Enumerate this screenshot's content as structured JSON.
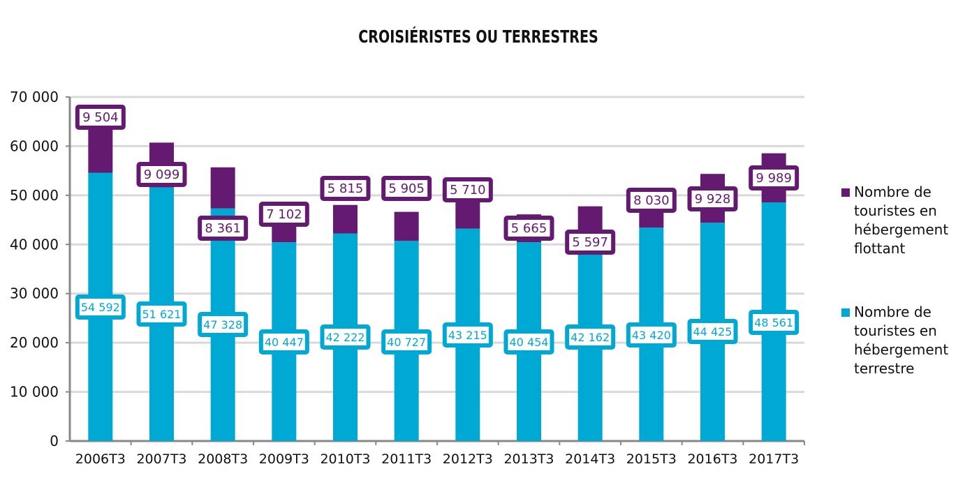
{
  "chart_data": {
    "type": "bar",
    "stacked": true,
    "title": "CROISIÉRISTES OU TERRESTRES",
    "categories": [
      "2006T3",
      "2007T3",
      "2008T3",
      "2009T3",
      "2010T3",
      "2011T3",
      "2012T3",
      "2013T3",
      "2014T3",
      "2015T3",
      "2016T3",
      "2017T3"
    ],
    "ylim": [
      0,
      70000
    ],
    "yticks": [
      0,
      10000,
      20000,
      30000,
      40000,
      50000,
      60000,
      70000
    ],
    "ytick_labels": [
      "0",
      "10 000",
      "20 000",
      "30 000",
      "40 000",
      "50 000",
      "60 000",
      "70 000"
    ],
    "grid": true,
    "legend_position": "right",
    "series": [
      {
        "name": "Nombre de touristes en hébergement terrestre",
        "color": "#00A8D4",
        "values": [
          54592,
          51621,
          47328,
          40447,
          42222,
          40727,
          43215,
          40454,
          42162,
          43420,
          44425,
          48561
        ],
        "labels": [
          "54 592",
          "51 621",
          "47 328",
          "40 447",
          "42 222",
          "40 727",
          "43 215",
          "40 454",
          "42 162",
          "43 420",
          "44 425",
          "48 561"
        ]
      },
      {
        "name": "Nombre de touristes en hébergement flottant",
        "color": "#651A72",
        "values": [
          9504,
          9099,
          8361,
          7102,
          5815,
          5905,
          5710,
          5665,
          5597,
          8030,
          9928,
          9989
        ],
        "labels": [
          "9 504",
          "9 099",
          "8 361",
          "7 102",
          "5 815",
          "5 905",
          "5 710",
          "5 665",
          "5 597",
          "8 030",
          "9 928",
          "9 989"
        ]
      }
    ]
  }
}
